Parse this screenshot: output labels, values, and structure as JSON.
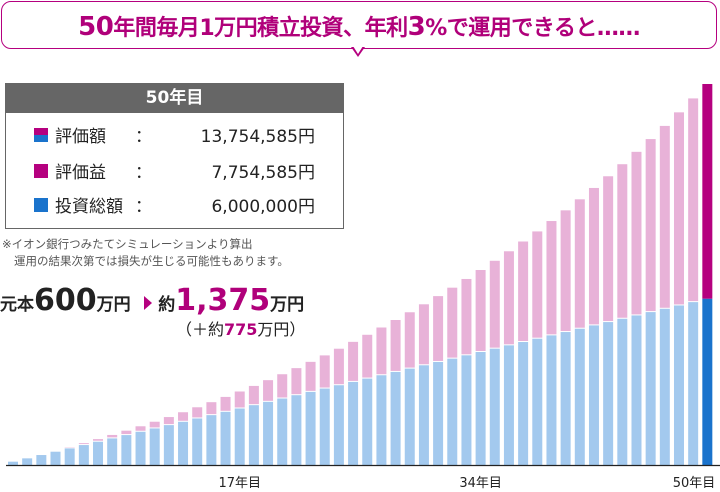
{
  "title": {
    "pre": "50",
    "t1": "年間毎月1万円積立投資、年利",
    "rate": "3",
    "t2": "%で運用できると……"
  },
  "box": {
    "header": "50年目",
    "rows": [
      {
        "label": "評価額",
        "colon": "：",
        "value": "13,754,585円"
      },
      {
        "label": "評価益",
        "colon": "：",
        "value": "7,754,585円"
      },
      {
        "label": "投資総額",
        "colon": "：",
        "value": "6,000,000円"
      }
    ]
  },
  "note": {
    "line1": "※イオン銀行つみたてシミュレーションより算出",
    "line2": "運用の結果次第では損失が生じる可能性もあります。"
  },
  "summary": {
    "principal_prefix": "元本",
    "principal_value": "600",
    "principal_unit": "万円",
    "result_prefix": "約",
    "result_value": "1,375",
    "result_unit": "万円",
    "gain_open": "（＋約",
    "gain_value": "775",
    "gain_close": "万円）"
  },
  "colors": {
    "accent": "#b5007f",
    "invested": "#a3c9ee",
    "gain": "#e8b2d8",
    "invested_final": "#1a73cc",
    "gain_final": "#b5007f",
    "box_header": "#666666"
  },
  "chart_data": {
    "type": "bar",
    "stacked": true,
    "unit": "万円",
    "x": [
      1,
      2,
      3,
      4,
      5,
      6,
      7,
      8,
      9,
      10,
      11,
      12,
      13,
      14,
      15,
      16,
      17,
      18,
      19,
      20,
      21,
      22,
      23,
      24,
      25,
      26,
      27,
      28,
      29,
      30,
      31,
      32,
      33,
      34,
      35,
      36,
      37,
      38,
      39,
      40,
      41,
      42,
      43,
      44,
      45,
      46,
      47,
      48,
      49,
      50
    ],
    "tick_labels": [
      {
        "year": 17,
        "label": "17年目"
      },
      {
        "year": 34,
        "label": "34年目"
      },
      {
        "year": 50,
        "label": "50年目"
      }
    ],
    "invested": [
      12,
      24,
      36,
      48,
      60,
      72,
      84,
      96,
      108,
      120,
      132,
      144,
      156,
      168,
      180,
      192,
      204,
      216,
      228,
      240,
      252,
      264,
      276,
      288,
      300,
      312,
      324,
      336,
      348,
      360,
      372,
      384,
      396,
      408,
      420,
      432,
      444,
      456,
      468,
      480,
      492,
      504,
      516,
      528,
      540,
      552,
      564,
      576,
      588,
      600
    ],
    "total": [
      12.2,
      24.8,
      37.7,
      51.0,
      64.8,
      78.9,
      93.5,
      108.5,
      123.9,
      139.8,
      156.2,
      173.1,
      190.5,
      208.4,
      226.8,
      245.8,
      265.4,
      285.5,
      306.3,
      327.7,
      349.7,
      372.4,
      395.7,
      419.8,
      444.6,
      470.1,
      496.4,
      523.5,
      551.4,
      580.2,
      609.7,
      640.2,
      671.6,
      704.0,
      737.3,
      771.6,
      806.9,
      843.3,
      880.8,
      919.4,
      959.2,
      1000.2,
      1042.4,
      1085.9,
      1130.6,
      1176.7,
      1224.2,
      1273.2,
      1323.5,
      1375.5
    ],
    "ylim": [
      0,
      1400
    ],
    "grid": false,
    "legend": "top-left"
  }
}
